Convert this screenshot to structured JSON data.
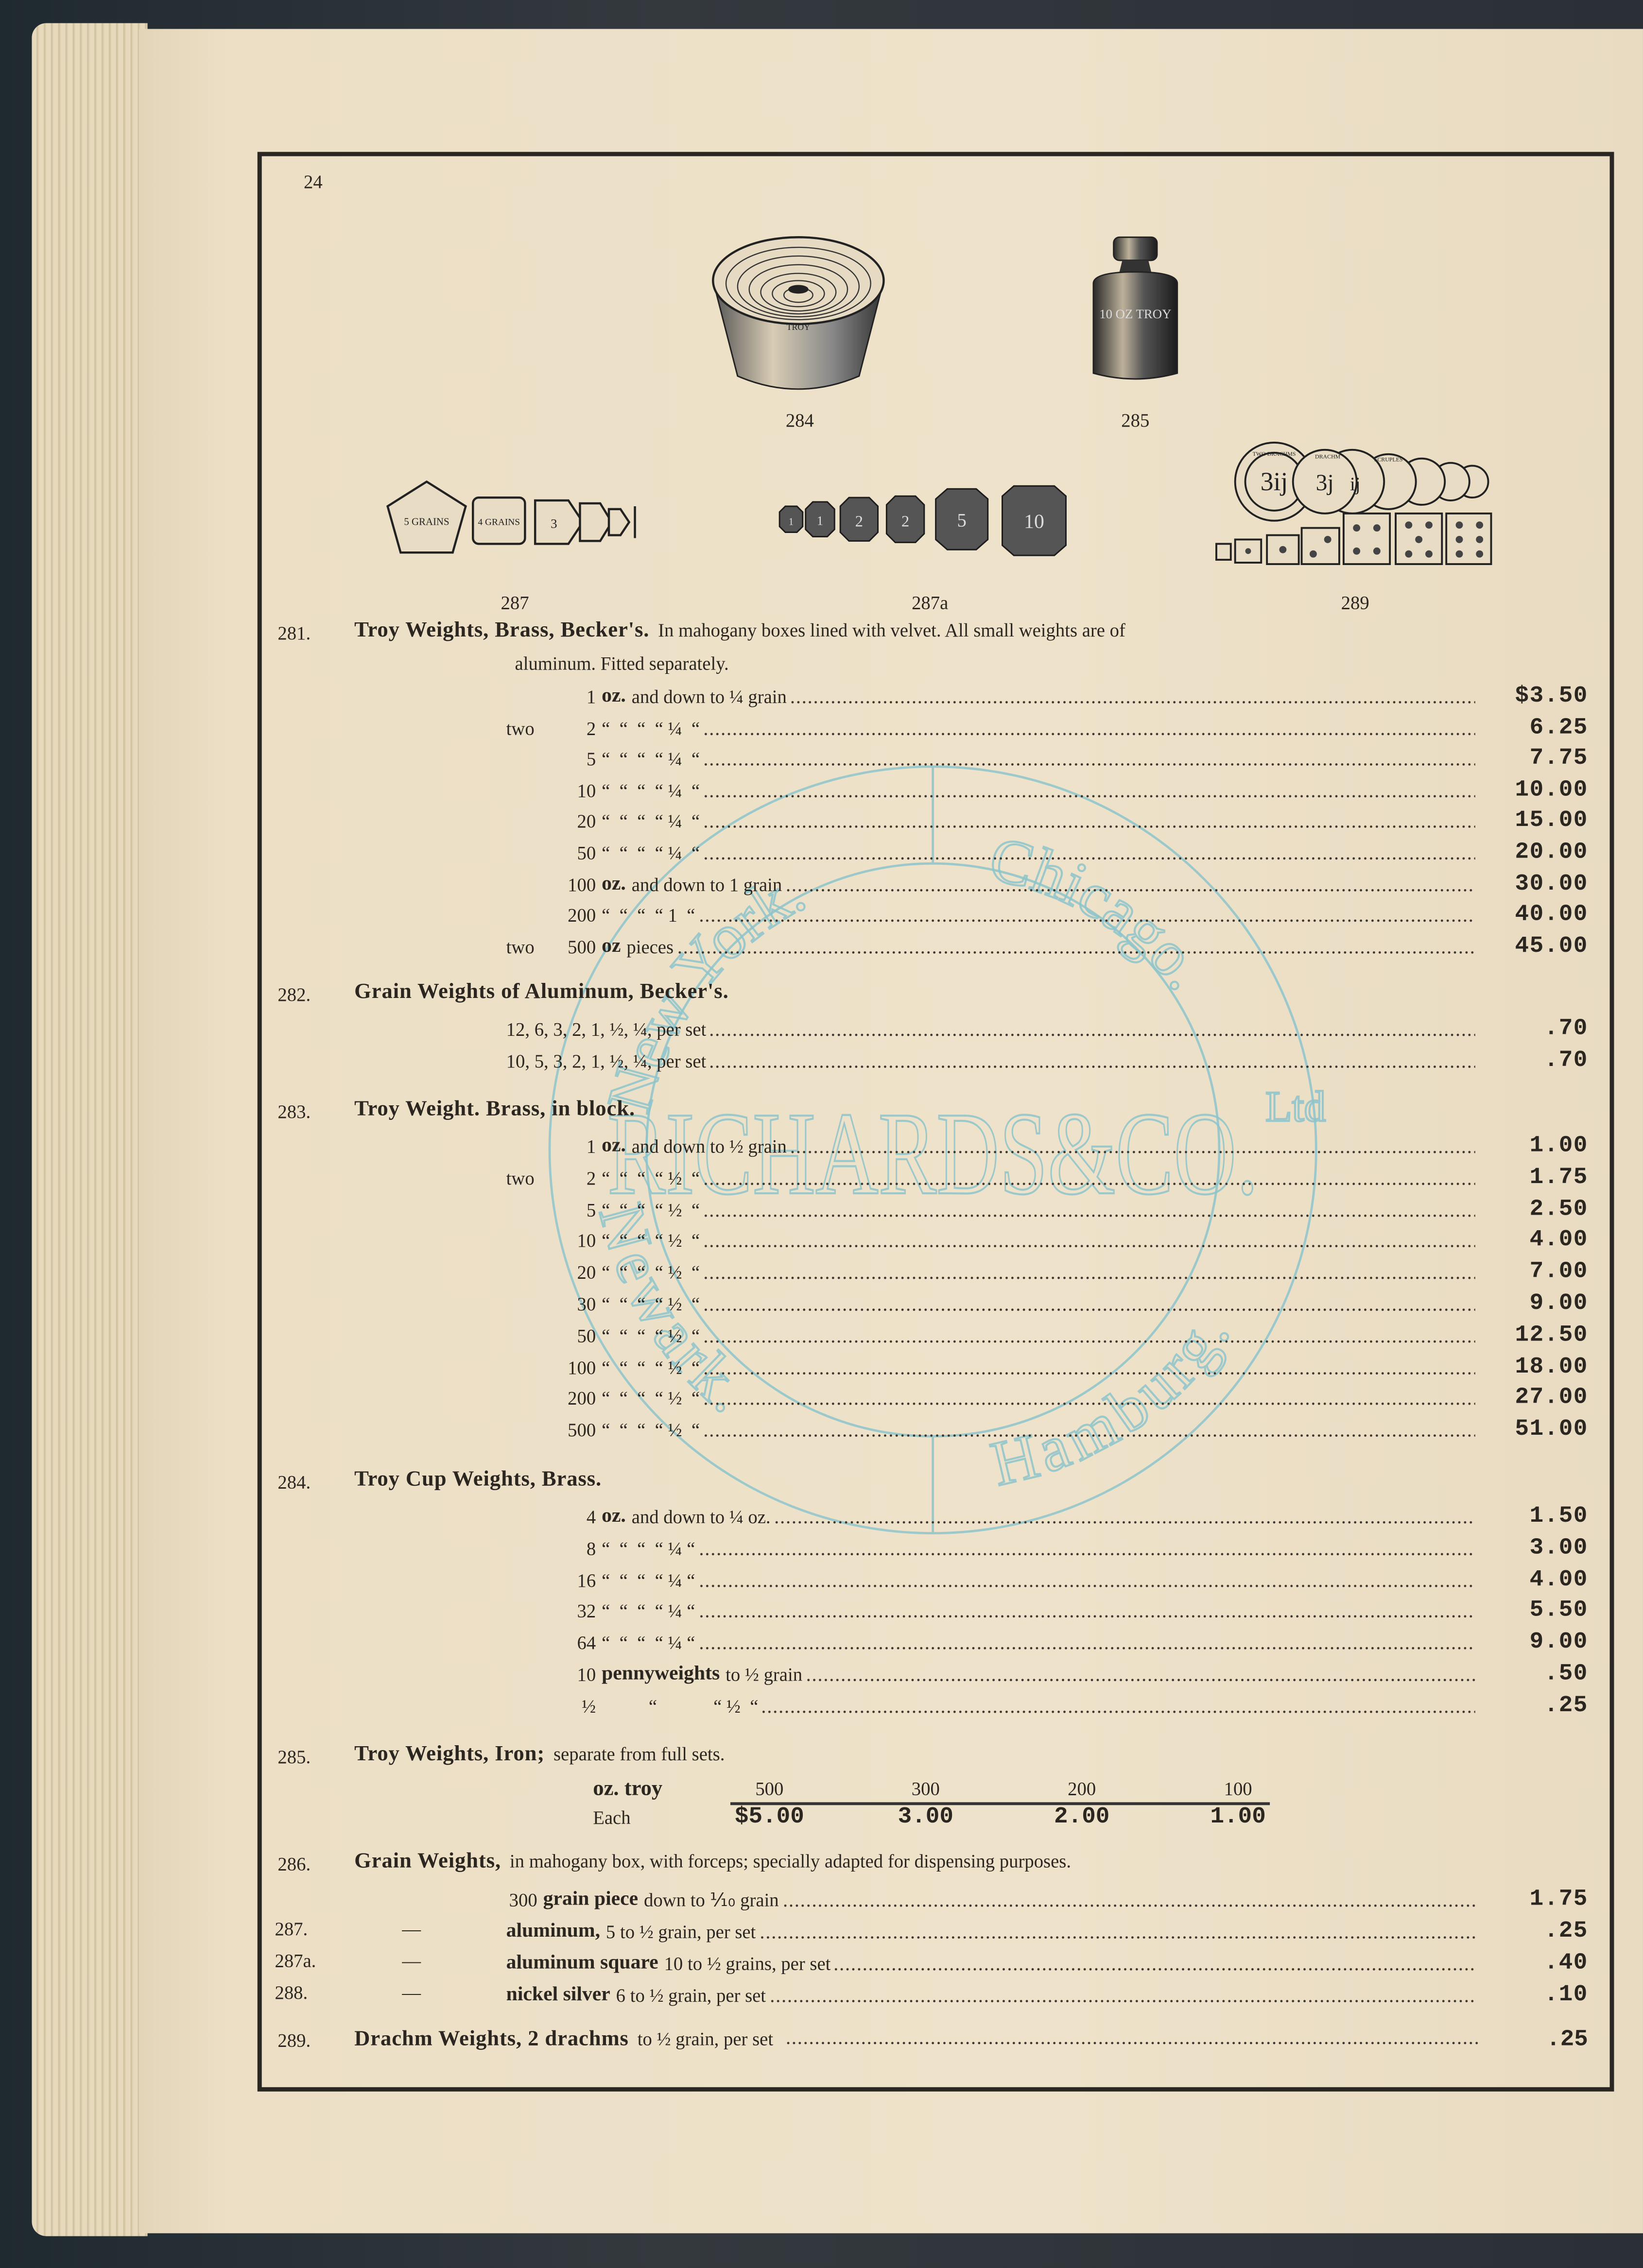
{
  "page_number": "24",
  "figures": [
    {
      "id": "284",
      "label": "284",
      "engraving": "TROY"
    },
    {
      "id": "285",
      "label": "285",
      "engraving": "10 OZ TROY"
    },
    {
      "id": "287",
      "label": "287",
      "engravings": [
        "5 GRAINS",
        "4 GRAINS",
        "3"
      ]
    },
    {
      "id": "287a",
      "label": "287a",
      "engravings": [
        "1",
        "1",
        "2",
        "2",
        "5",
        "10"
      ]
    },
    {
      "id": "289",
      "label": "289",
      "engravings": [
        "3ij",
        "3j",
        "ij",
        "TWO DRACHMS",
        "DRACHM",
        "SCRUPLES"
      ]
    }
  ],
  "stamp": {
    "color": "#8cc4cc",
    "top_left": "New York.",
    "top_right": "Chicago.",
    "center": "RICHARDS&CO.",
    "suffix": "Ltd",
    "bottom_left": "Newark.",
    "bottom_right": "Hamburg."
  },
  "sections": [
    {
      "number": "281.",
      "title": "Troy Weights, Brass, Becker's.",
      "desc": "In mahogany boxes lined with velvet.  All small weights are of",
      "desc2": "aluminum.  Fitted separately.",
      "rows": [
        {
          "qty": "1",
          "unit": "oz.",
          "text": "and down to ¼ grain",
          "price": "$3.50"
        },
        {
          "prefix": "two",
          "qty": "2",
          "text": "“  “  “  “ ¼  “",
          "price": "6.25"
        },
        {
          "qty": "5",
          "text": "“  “  “  “ ¼  “",
          "price": "7.75"
        },
        {
          "qty": "10",
          "text": "“  “  “  “ ¼  “",
          "price": "10.00"
        },
        {
          "qty": "20",
          "text": "“  “  “  “ ¼  “",
          "price": "15.00"
        },
        {
          "qty": "50",
          "text": "“  “  “  “ ¼  “",
          "price": "20.00"
        },
        {
          "qty": "100",
          "unit": "oz.",
          "text": "and down to 1 grain",
          "price": "30.00"
        },
        {
          "qty": "200",
          "text": "“  “  “  “ 1  “",
          "price": "40.00"
        },
        {
          "prefix": "two",
          "qty": "500",
          "unit": "oz",
          "text": "pieces",
          "price": "45.00"
        }
      ]
    },
    {
      "number": "282.",
      "title": "Grain Weights of Aluminum, Becker's.",
      "rows": [
        {
          "text": "12, 6, 3, 2, 1, ½, ¼, per set",
          "price": ".70"
        },
        {
          "text": "10, 5, 3, 2, 1, ½, ¼, per set",
          "price": ".70"
        }
      ]
    },
    {
      "number": "283.",
      "title": "Troy Weight. Brass, in block.",
      "rows": [
        {
          "qty": "1",
          "unit": "oz.",
          "text": "and down to ½ grain",
          "price": "1.00"
        },
        {
          "prefix": "two",
          "qty": "2",
          "text": "“  “  “  “ ½  “",
          "price": "1.75"
        },
        {
          "qty": "5",
          "text": "“  “  “  “ ½  “",
          "price": "2.50"
        },
        {
          "qty": "10",
          "text": "“  “  “  “ ½  “",
          "price": "4.00"
        },
        {
          "qty": "20",
          "text": "“  “  “  “ ½  “",
          "price": "7.00"
        },
        {
          "qty": "30",
          "text": "“  “  “  “ ½  “",
          "price": "9.00"
        },
        {
          "qty": "50",
          "text": "“  “  “  “ ½  “",
          "price": "12.50"
        },
        {
          "qty": "100",
          "text": "“  “  “  “ ½  “",
          "price": "18.00"
        },
        {
          "qty": "200",
          "text": "“  “  “  “ ½  “",
          "price": "27.00"
        },
        {
          "qty": "500",
          "text": "“  “  “  “ ½  “",
          "price": "51.00"
        }
      ]
    },
    {
      "number": "284.",
      "title": "Troy Cup Weights, Brass.",
      "rows": [
        {
          "qty": "4",
          "unit": "oz.",
          "text": "and down to ¼ oz.",
          "price": "1.50"
        },
        {
          "qty": "8",
          "text": "“  “  “  “ ¼ “",
          "price": "3.00"
        },
        {
          "qty": "16",
          "text": "“  “  “  “ ¼ “",
          "price": "4.00"
        },
        {
          "qty": "32",
          "text": "“  “  “  “ ¼ “",
          "price": "5.50"
        },
        {
          "qty": "64",
          "text": "“  “  “  “ ¼ “",
          "price": "9.00"
        },
        {
          "qty": "10",
          "unit": "pennyweights",
          "text": "to ½ grain",
          "price": ".50"
        },
        {
          "qty": "½",
          "text": "          “            “ ½  “",
          "price": ".25"
        }
      ]
    },
    {
      "number": "285.",
      "title": "Troy Weights, Iron;",
      "desc": "separate from full sets.",
      "table": {
        "header_label": "oz. troy",
        "sizes": [
          "500",
          "300",
          "200",
          "100"
        ],
        "row_label": "Each",
        "prices": [
          "$5.00",
          "3.00",
          "2.00",
          "1.00"
        ]
      }
    },
    {
      "number": "286.",
      "title": "Grain Weights,",
      "desc": "in mahogany box, with forceps; specially adapted for dispensing purposes.",
      "rows": [
        {
          "lead": "300",
          "unit": "grain piece",
          "text": "down to ⅒ grain",
          "price": "1.75"
        },
        {
          "number": "287.",
          "dash": "—",
          "unit": "aluminum,",
          "text": "5 to ½ grain, per set",
          "price": ".25"
        },
        {
          "number": "287a.",
          "dash": "—",
          "unit": "aluminum square",
          "text": "10 to ½ grains, per set",
          "price": ".40"
        },
        {
          "number": "288.",
          "dash": "—",
          "unit": "nickel silver",
          "text": "6 to ½ grain, per set",
          "price": ".10"
        }
      ]
    },
    {
      "number": "289.",
      "title": "Drachm Weights, 2 drachms",
      "desc": "to ½ grain, per set",
      "price": ".25"
    }
  ]
}
